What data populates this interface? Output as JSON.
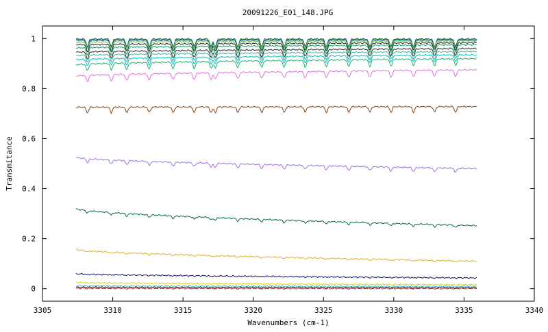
{
  "chart_data": {
    "type": "line",
    "title": "20091226_E01_148.JPG",
    "xlabel": "Wavenumbers (cm-1)",
    "ylabel": "Transmitance",
    "xlim": [
      3305,
      3340
    ],
    "ylim": [
      -0.05,
      1.05
    ],
    "xticks": [
      3305,
      3310,
      3315,
      3320,
      3325,
      3330,
      3335,
      3340
    ],
    "yticks": [
      0,
      0.2,
      0.4,
      0.6,
      0.8,
      1
    ],
    "ytick_labels": [
      "0",
      "0.2",
      "0.4",
      "0.6",
      "0.8",
      "1"
    ],
    "grid": false,
    "legend": "none",
    "x_range": [
      3307.4,
      3335.9
    ],
    "absorption_lines": [
      3308.2,
      3309.9,
      3311.0,
      3312.6,
      3314.3,
      3315.8,
      3317.0,
      3317.3,
      3318.9,
      3320.6,
      3322.2,
      3323.7,
      3325.2,
      3326.8,
      3328.3,
      3329.8,
      3331.4,
      3332.9,
      3334.4
    ],
    "series": [
      {
        "start": 0.998,
        "end": 0.998,
        "color": "#2f5f2f"
      },
      {
        "start": 0.995,
        "end": 0.996,
        "color": "#3c3c8c"
      },
      {
        "start": 0.992,
        "end": 0.993,
        "color": "#00a0a0"
      },
      {
        "start": 0.985,
        "end": 0.99,
        "color": "#7fbf3f"
      },
      {
        "start": 0.975,
        "end": 0.983,
        "color": "#1f1f1f"
      },
      {
        "start": 0.962,
        "end": 0.975,
        "color": "#00a060"
      },
      {
        "start": 0.945,
        "end": 0.96,
        "color": "#2a2a2a"
      },
      {
        "start": 0.932,
        "end": 0.948,
        "color": "#40b0a0"
      },
      {
        "start": 0.915,
        "end": 0.935,
        "color": "#00c0c0"
      },
      {
        "start": 0.895,
        "end": 0.92,
        "color": "#20b070"
      },
      {
        "start": 0.85,
        "end": 0.875,
        "color": "#e070e0"
      },
      {
        "start": 0.725,
        "end": 0.728,
        "color": "#804010"
      },
      {
        "start": 0.525,
        "end": 0.48,
        "color": "#a070e0"
      },
      {
        "start": 0.32,
        "end": 0.252,
        "color": "#006b3c"
      },
      {
        "start": 0.157,
        "end": 0.11,
        "color": "#e0b020"
      },
      {
        "start": 0.06,
        "end": 0.043,
        "color": "#101060"
      },
      {
        "start": 0.025,
        "end": 0.016,
        "color": "#e0d000"
      },
      {
        "start": 0.012,
        "end": 0.009,
        "color": "#40c0e0"
      },
      {
        "start": 0.006,
        "end": 0.004,
        "color": "#202020"
      },
      {
        "start": 0.002,
        "end": 0.001,
        "color": "#d02020"
      }
    ]
  }
}
